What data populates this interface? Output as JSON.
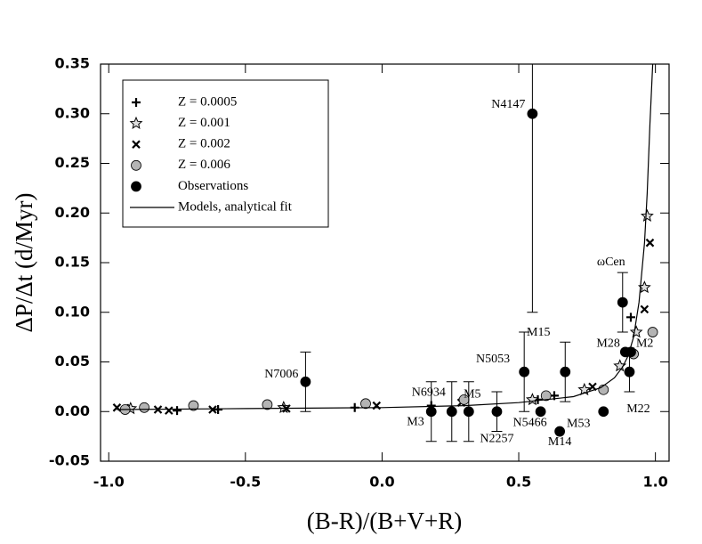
{
  "chart_data": {
    "type": "scatter",
    "xlabel": "(B-R)/(B+V+R)",
    "ylabel": "ΔP/Δt (d/Myr)",
    "xlim": [
      -1.03,
      1.05
    ],
    "ylim": [
      -0.05,
      0.35
    ],
    "xticks": [
      {
        "value": -1,
        "label": "-1.0"
      },
      -0.5,
      {
        "value": 0,
        "label": "0.0"
      },
      0.5,
      {
        "value": 1,
        "label": "1.0"
      }
    ],
    "yticks": [
      -0.05,
      {
        "value": 0,
        "label": "0.00"
      },
      0.05,
      {
        "value": 0.1,
        "label": "0.10"
      },
      0.15,
      {
        "value": 0.2,
        "label": "0.20"
      },
      0.25,
      {
        "value": 0.3,
        "label": "0.30"
      },
      0.35
    ],
    "legend": "upper-left",
    "series": [
      {
        "name": "Z = 0.0005",
        "marker": "plus",
        "color": "#000000",
        "x": [
          -0.93,
          -0.75,
          -0.6,
          -0.1,
          0.18,
          0.57,
          0.63,
          0.91,
          0.92
        ],
        "values": [
          0.003,
          0.001,
          0.002,
          0.004,
          0.006,
          0.012,
          0.016,
          0.095,
          0.06
        ]
      },
      {
        "name": "Z = 0.001",
        "marker": "star",
        "color": "#000000",
        "x": [
          -0.92,
          -0.36,
          0.55,
          0.74,
          0.87,
          0.93,
          0.96,
          0.97
        ],
        "values": [
          0.003,
          0.004,
          0.012,
          0.022,
          0.046,
          0.08,
          0.125,
          0.197
        ]
      },
      {
        "name": "Z = 0.002",
        "marker": "cross",
        "color": "#000000",
        "x": [
          -0.97,
          -0.82,
          -0.78,
          -0.62,
          -0.35,
          -0.02,
          0.29,
          0.77,
          0.96,
          0.98
        ],
        "values": [
          0.004,
          0.002,
          0.001,
          0.002,
          0.003,
          0.006,
          0.009,
          0.025,
          0.103,
          0.17
        ]
      },
      {
        "name": "Z = 0.006",
        "marker": "circle",
        "color": "#b4b4b4",
        "x": [
          -0.94,
          -0.87,
          -0.69,
          -0.42,
          -0.06,
          0.3,
          0.6,
          0.81,
          0.92,
          0.99
        ],
        "values": [
          0.002,
          0.004,
          0.006,
          0.007,
          0.008,
          0.012,
          0.016,
          0.022,
          0.058,
          0.08
        ]
      },
      {
        "name": "Observations",
        "marker": "circle",
        "color": "#000000",
        "x": [
          -0.28,
          0.18,
          0.255,
          0.317,
          0.42,
          0.52,
          0.55,
          0.58,
          0.65,
          0.67,
          0.81,
          0.88,
          0.89,
          0.91,
          0.905
        ],
        "values": [
          0.03,
          0,
          0,
          0,
          0,
          0.04,
          0.3,
          0,
          -0.02,
          0.04,
          0,
          0.11,
          0.06,
          0.06,
          0.04
        ],
        "errors": [
          0.03,
          0.03,
          0.03,
          0.03,
          0.02,
          0.04,
          0.2,
          null,
          null,
          0.03,
          null,
          0.03,
          null,
          null,
          0.02
        ],
        "labels": [
          "N7006",
          "M3",
          "N6934",
          "M5",
          "N2257",
          "N5053",
          "N4147",
          "N5466",
          "M14",
          "M15",
          "M53",
          "ωCen",
          "M28",
          "M2",
          "M22"
        ]
      },
      {
        "name": "Models, analytical fit",
        "marker": "line",
        "color": "#000000",
        "x": [
          -0.97,
          -0.5,
          0,
          0.3,
          0.5,
          0.7,
          0.8,
          0.85,
          0.88,
          0.9,
          0.92,
          0.94,
          0.96,
          0.97,
          0.98,
          0.99
        ],
        "values": [
          0.002,
          0.003,
          0.004,
          0.006,
          0.009,
          0.015,
          0.024,
          0.034,
          0.045,
          0.056,
          0.075,
          0.11,
          0.17,
          0.22,
          0.29,
          0.35
        ]
      }
    ]
  }
}
